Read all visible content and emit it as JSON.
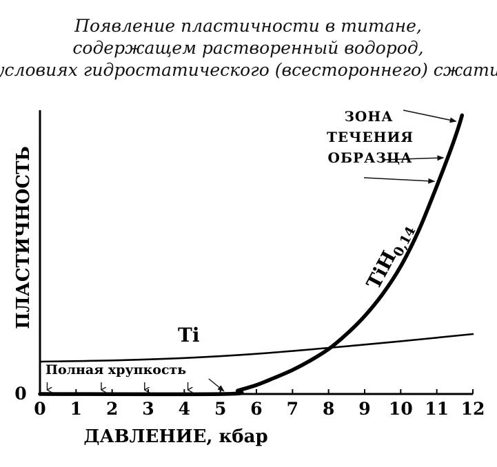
{
  "chart_data": {
    "type": "line",
    "title_lines": [
      "Появление пластичности в титане,",
      "содержащем растворенный водород,",
      "в условиях гидростатического (всестороннего) сжатия."
    ],
    "xlabel": "ДАВЛЕНИЕ, кбар",
    "ylabel": "ПЛАСТИЧНОСТЬ",
    "xlim": [
      0,
      12
    ],
    "x_ticks": [
      0,
      1,
      2,
      3,
      4,
      5,
      6,
      7,
      8,
      9,
      10,
      11,
      12
    ],
    "y_tick_labels": [
      {
        "value": 0,
        "label": "0"
      }
    ],
    "y_numeric_scale_shown": false,
    "grid": false,
    "series": [
      {
        "name": "Ti",
        "color": "#000000",
        "points": [
          [
            0,
            0.54
          ],
          [
            2,
            0.56
          ],
          [
            4,
            0.6
          ],
          [
            6,
            0.67
          ],
          [
            8,
            0.77
          ],
          [
            10,
            0.88
          ],
          [
            12,
            1.0
          ]
        ]
      },
      {
        "name": "TiH0,14",
        "color": "#000000",
        "points": [
          [
            0,
            0.0
          ],
          [
            5.1,
            0.0
          ],
          [
            5.5,
            0.06
          ],
          [
            6,
            0.15
          ],
          [
            6.5,
            0.27
          ],
          [
            7,
            0.4
          ],
          [
            7.5,
            0.56
          ],
          [
            8,
            0.75
          ],
          [
            8.5,
            1.0
          ],
          [
            9,
            1.3
          ],
          [
            9.5,
            1.67
          ],
          [
            10,
            2.13
          ],
          [
            10.5,
            2.73
          ],
          [
            11,
            3.47
          ],
          [
            11.4,
            4.1
          ],
          [
            11.6,
            4.45
          ],
          [
            11.7,
            4.65
          ]
        ]
      }
    ],
    "annotations": {
      "brittle_zone": {
        "text": "Полная хрупкость",
        "arrow_x": [
          0.2,
          1.7,
          2.9,
          4.1,
          5.1
        ]
      },
      "flow_zone": {
        "lines": [
          "ЗОНА",
          "ТЕЧЕНИЯ",
          "ОБРАЗЦА"
        ],
        "arrow_x": [
          11.65,
          11.3,
          11.05
        ]
      },
      "curve_labels": {
        "ti": "Ti",
        "tih_base": "TiH",
        "tih_sub": "0,14"
      }
    }
  }
}
